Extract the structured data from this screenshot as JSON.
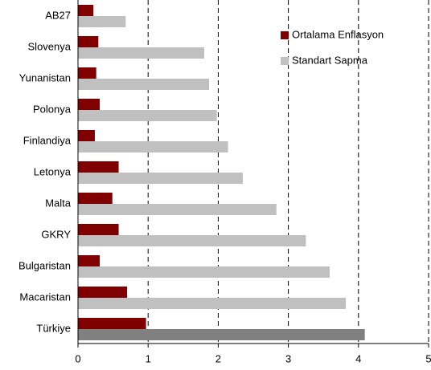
{
  "chart_data": {
    "type": "hbar",
    "categories": [
      "AB27",
      "Slovenya",
      "Yunanistan",
      "Polonya",
      "Finlandiya",
      "Letonya",
      "Malta",
      "GKRY",
      "Bulgaristan",
      "Macaristan",
      "Türkiye"
    ],
    "series": [
      {
        "name": "Ortalama Enflasyon",
        "color": "#800000",
        "values": [
          0.22,
          0.29,
          0.26,
          0.31,
          0.24,
          0.58,
          0.49,
          0.58,
          0.31,
          0.7,
          0.97
        ]
      },
      {
        "name": "Standart Sapma",
        "color": "#c0c0c0",
        "colors": [
          "#c0c0c0",
          "#c0c0c0",
          "#c0c0c0",
          "#c0c0c0",
          "#c0c0c0",
          "#c0c0c0",
          "#c0c0c0",
          "#c0c0c0",
          "#c0c0c0",
          "#c0c0c0",
          "#808080"
        ],
        "values": [
          0.68,
          1.8,
          1.87,
          1.98,
          2.14,
          2.35,
          2.83,
          3.25,
          3.59,
          3.82,
          4.09
        ]
      }
    ],
    "xlim": [
      0,
      5
    ],
    "xticks": [
      0,
      1,
      2,
      3,
      4,
      5
    ],
    "grid": true,
    "legend": "top-right"
  }
}
